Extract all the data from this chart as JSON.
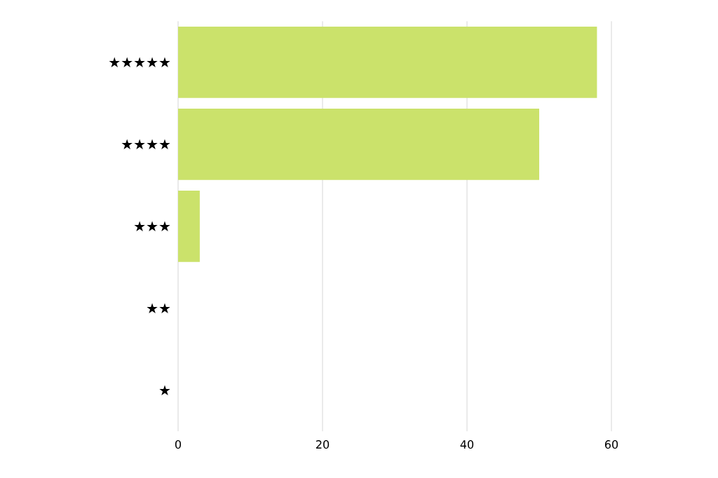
{
  "chart_data": {
    "type": "bar",
    "orientation": "horizontal",
    "categories": [
      "★★★★★",
      "★★★★",
      "★★★",
      "★★",
      "★"
    ],
    "values": [
      58,
      50,
      3,
      0,
      0
    ],
    "color": "#cbe26b",
    "xlim": [
      0,
      60
    ],
    "xticks": [
      0,
      20,
      40,
      60
    ],
    "grid": "x"
  }
}
